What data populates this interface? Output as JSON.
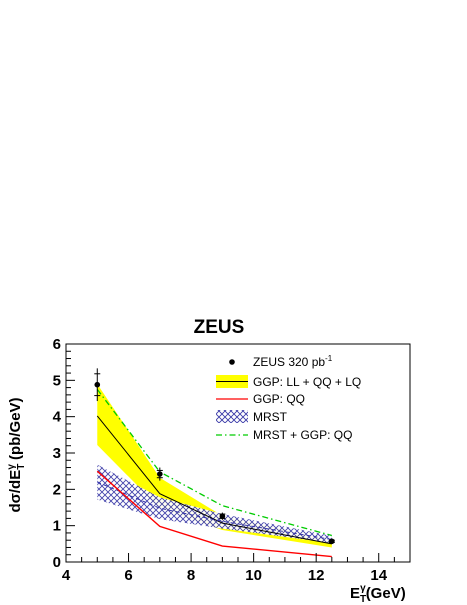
{
  "chart_data": {
    "type": "line",
    "title": "ZEUS",
    "xlabel": {
      "main": "E",
      "sup": "γ",
      "sub": "T",
      "rest": "(GeV)"
    },
    "ylabel": {
      "pre": "dσ/dE",
      "sup": "γ",
      "sub": "T",
      "rest": " (pb/GeV)"
    },
    "xlim": [
      4,
      15
    ],
    "ylim": [
      0,
      6
    ],
    "xticks": [
      4,
      6,
      8,
      10,
      12,
      14
    ],
    "yticks": [
      0,
      1,
      2,
      3,
      4,
      5,
      6
    ],
    "grid": false,
    "legend_position": "top-right",
    "colors": {
      "data": "#000000",
      "ggp_total_band": "#ffff00",
      "ggp_total_line": "#000000",
      "ggp_qq": "#ff0000",
      "mrst_band": "#3333aa",
      "mrst_line": "#3333aa",
      "mrst_ggp_qq": "#00cc00"
    },
    "series": [
      {
        "key": "data",
        "name": "ZEUS 320 pb",
        "name_sup": "-1",
        "kind": "points",
        "x": [
          5,
          7,
          9,
          12.5
        ],
        "y": [
          4.88,
          2.42,
          1.26,
          0.57
        ],
        "yerr_stat": [
          0.3,
          0.1,
          0.06,
          0.03
        ],
        "yerr_total": [
          0.45,
          0.18,
          0.1,
          0.05
        ]
      },
      {
        "key": "ggp_total",
        "name": "GGP: LL + QQ + LQ",
        "kind": "line_band",
        "x": [
          5,
          7,
          9,
          12.5
        ],
        "y": [
          4.02,
          1.88,
          1.07,
          0.5
        ],
        "y_low": [
          3.22,
          1.48,
          0.88,
          0.4
        ],
        "y_high": [
          4.9,
          2.32,
          1.27,
          0.6
        ]
      },
      {
        "key": "ggp_qq",
        "name": "GGP: QQ",
        "kind": "line",
        "x": [
          5,
          7,
          9,
          12.5
        ],
        "y": [
          2.5,
          0.98,
          0.44,
          0.15
        ]
      },
      {
        "key": "mrst",
        "name": "MRST",
        "kind": "band",
        "x": [
          5,
          7,
          9,
          12.5
        ],
        "y": [
          2.2,
          1.48,
          1.12,
          0.62
        ],
        "y_low": [
          1.72,
          1.18,
          0.92,
          0.52
        ],
        "y_high": [
          2.68,
          1.78,
          1.32,
          0.72
        ]
      },
      {
        "key": "mrst_ggp_qq",
        "name": "MRST + GGP: QQ",
        "kind": "dashdot",
        "x": [
          5,
          7,
          9,
          12.5
        ],
        "y": [
          4.75,
          2.48,
          1.55,
          0.73
        ]
      }
    ]
  }
}
